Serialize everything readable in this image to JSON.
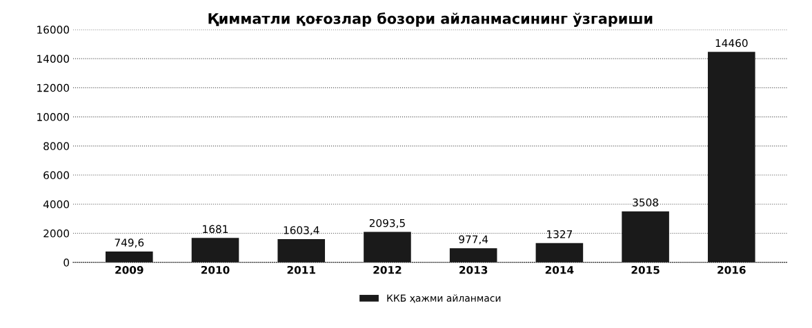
{
  "chart_data": {
    "type": "bar",
    "title": "Қимматли қоғозлар бозори айланмасининг ўзгариши",
    "categories": [
      "2009",
      "2010",
      "2011",
      "2012",
      "2013",
      "2014",
      "2015",
      "2016"
    ],
    "series": [
      {
        "name": "ККБ ҳажми айланмаси",
        "color": "#1a1a1a",
        "values": [
          749.6,
          1681,
          1603.4,
          2093.5,
          977.4,
          1327,
          3508,
          14460
        ],
        "value_labels": [
          "749,6",
          "1681",
          "1603,4",
          "2093,5",
          "977,4",
          "1327",
          "3508",
          "14460"
        ]
      }
    ],
    "ylim": [
      0,
      16000
    ],
    "yticks": [
      0,
      2000,
      4000,
      6000,
      8000,
      10000,
      12000,
      14000,
      16000
    ],
    "grid": "y",
    "legend": "bottom"
  }
}
